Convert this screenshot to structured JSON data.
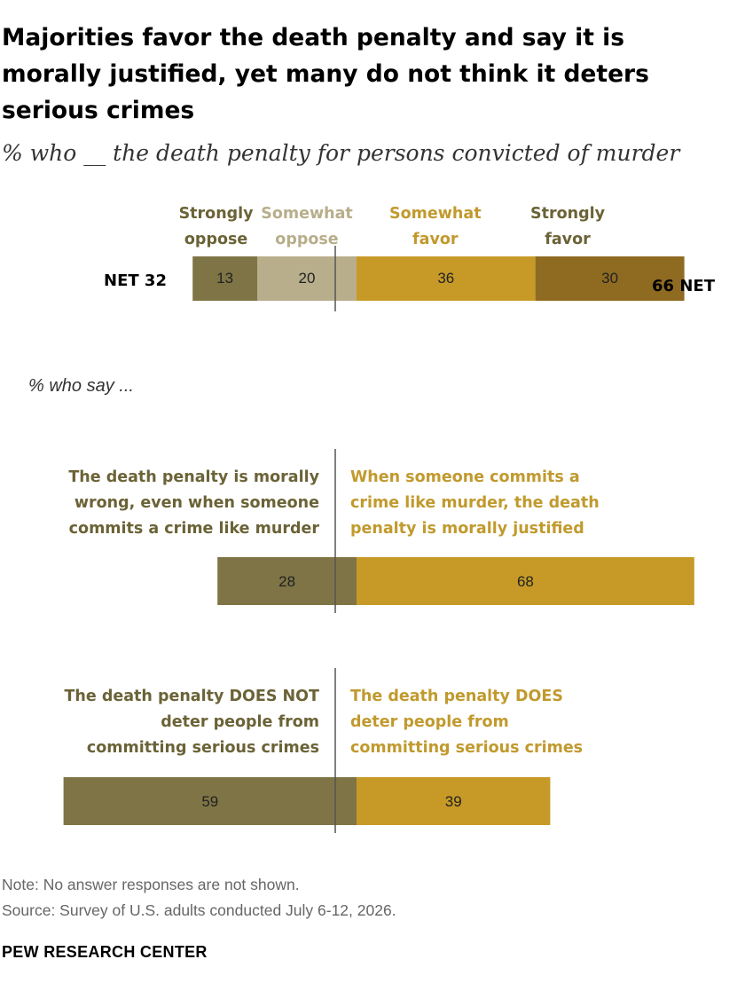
{
  "title": "Majorities favor the death penalty and say it is morally justified, yet many do not think it deters serious crimes",
  "subtitle": "% who __ the death penalty for persons convicted of murder",
  "section_label": "% who say ...",
  "note": "Note: No answer responses are not shown.",
  "source": "Source: Survey of U.S. adults conducted July 6-12, 2026.",
  "brand": "PEW RESEARCH CENTER",
  "colors": {
    "strongly_oppose": "#7f7445",
    "somewhat_oppose": "#b8ae8b",
    "somewhat_favor": "#c79a27",
    "strongly_favor": "#8f6b22",
    "oppose_text": "#6b6337",
    "favor_text": "#c19a2e"
  },
  "chart_data": [
    {
      "type": "bar",
      "orientation": "horizontal-stacked-diverging",
      "series": [
        {
          "name": "Strongly oppose",
          "values": [
            13
          ]
        },
        {
          "name": "Somewhat oppose",
          "values": [
            20
          ]
        },
        {
          "name": "Somewhat favor",
          "values": [
            36
          ]
        },
        {
          "name": "Strongly favor",
          "values": [
            30
          ]
        }
      ],
      "legend_lines": {
        "strongly_oppose": [
          "Strongly",
          "oppose"
        ],
        "somewhat_oppose": [
          "Somewhat",
          "oppose"
        ],
        "somewhat_favor": [
          "Somewhat",
          "favor"
        ],
        "strongly_favor": [
          "Strongly",
          "favor"
        ]
      },
      "net_left_label": "NET 32",
      "net_right_label": "66 NET"
    },
    {
      "type": "bar",
      "orientation": "horizontal-diverging",
      "left_label_lines": [
        "The death penalty is morally",
        "wrong, even when someone",
        "commits a crime like murder"
      ],
      "right_label_lines": [
        "When someone commits a",
        "crime like murder, the death",
        "penalty is morally justified"
      ],
      "values": [
        28,
        68
      ]
    },
    {
      "type": "bar",
      "orientation": "horizontal-diverging",
      "left_label_lines": [
        "The death penalty DOES NOT",
        "deter people from",
        "committing serious crimes"
      ],
      "right_label_lines": [
        "The death penalty DOES",
        "deter people from",
        "committing serious crimes"
      ],
      "values": [
        59,
        39
      ]
    }
  ]
}
